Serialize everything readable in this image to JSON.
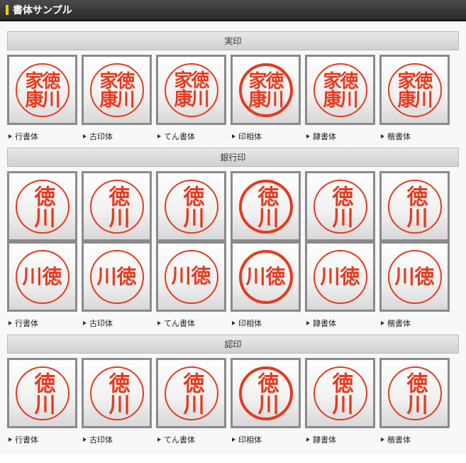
{
  "header": {
    "title": "書体サンプル"
  },
  "stamp_color": "#e63a1e",
  "box_border": "#8a8a8a",
  "sections": [
    {
      "title": "実印",
      "rows": [
        [
          {
            "text": "徳川家康",
            "style": "gyou",
            "size": 4
          },
          {
            "text": "徳川家康",
            "style": "koin",
            "size": 4
          },
          {
            "text": "徳川家康",
            "style": "ten",
            "size": 4
          },
          {
            "text": "徳川家康",
            "style": "in",
            "size": 4
          },
          {
            "text": "徳川家康",
            "style": "rei",
            "size": 4
          },
          {
            "text": "徳川家康",
            "style": "kai",
            "size": 4
          }
        ]
      ],
      "labels": [
        "行書体",
        "古印体",
        "てん書体",
        "印相体",
        "隷書体",
        "楷書体"
      ]
    },
    {
      "title": "銀行印",
      "rows": [
        [
          {
            "text": "徳川",
            "style": "gyou",
            "size": 2,
            "v": true
          },
          {
            "text": "徳川",
            "style": "koin",
            "size": 2,
            "v": true
          },
          {
            "text": "徳川",
            "style": "ten",
            "size": 2,
            "v": true
          },
          {
            "text": "徳川",
            "style": "in",
            "size": 2,
            "v": true
          },
          {
            "text": "徳川",
            "style": "rei",
            "size": 2,
            "v": true
          },
          {
            "text": "徳川",
            "style": "kai",
            "size": 2,
            "v": true
          }
        ],
        [
          {
            "text": "川徳",
            "style": "gyou",
            "size": 2
          },
          {
            "text": "川徳",
            "style": "koin",
            "size": 2
          },
          {
            "text": "川徳",
            "style": "ten",
            "size": 2
          },
          {
            "text": "川徳",
            "style": "in",
            "size": 2
          },
          {
            "text": "川徳",
            "style": "rei",
            "size": 2
          },
          {
            "text": "川徳",
            "style": "kai",
            "size": 2
          }
        ]
      ],
      "labels": [
        "行書体",
        "古印体",
        "てん書体",
        "印相体",
        "隷書体",
        "楷書体"
      ]
    },
    {
      "title": "認印",
      "rows": [
        [
          {
            "text": "徳川",
            "style": "gyou",
            "size": 2,
            "v": true
          },
          {
            "text": "徳川",
            "style": "koin",
            "size": 2,
            "v": true
          },
          {
            "text": "徳川",
            "style": "ten",
            "size": 2,
            "v": true
          },
          {
            "text": "徳川",
            "style": "in",
            "size": 2,
            "v": true
          },
          {
            "text": "徳川",
            "style": "rei",
            "size": 2,
            "v": true
          },
          {
            "text": "徳川",
            "style": "kai",
            "size": 2,
            "v": true
          }
        ]
      ],
      "labels": [
        "行書体",
        "古印体",
        "てん書体",
        "印相体",
        "隷書体",
        "楷書体"
      ]
    }
  ]
}
